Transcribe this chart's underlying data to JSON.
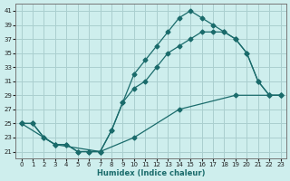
{
  "xlabel": "Humidex (Indice chaleur)",
  "xlim": [
    -0.5,
    23.5
  ],
  "ylim": [
    20,
    42
  ],
  "yticks": [
    21,
    23,
    25,
    27,
    29,
    31,
    33,
    35,
    37,
    39,
    41
  ],
  "xticks": [
    0,
    1,
    2,
    3,
    4,
    5,
    6,
    7,
    8,
    9,
    10,
    11,
    12,
    13,
    14,
    15,
    16,
    17,
    18,
    19,
    20,
    21,
    22,
    23
  ],
  "bg_color": "#ceeeed",
  "grid_color": "#aacfcf",
  "line_color": "#1a6b6b",
  "curve_top_x": [
    0,
    1,
    2,
    3,
    4,
    5,
    6,
    7,
    8,
    9,
    10,
    11,
    12,
    13,
    14,
    15,
    16,
    17,
    18,
    19,
    20,
    21,
    22,
    23
  ],
  "curve_top_y": [
    25,
    25,
    23,
    22,
    22,
    21,
    21,
    21,
    24,
    28,
    32,
    34,
    36,
    38,
    40,
    41,
    40,
    39,
    38,
    37,
    35,
    31,
    29,
    29
  ],
  "curve_mid_x": [
    0,
    1,
    2,
    3,
    4,
    5,
    6,
    7,
    8,
    9,
    10,
    11,
    12,
    13,
    14,
    15,
    16,
    17,
    18,
    19,
    20,
    21,
    22,
    23
  ],
  "curve_mid_y": [
    25,
    25,
    23,
    22,
    22,
    21,
    21,
    21,
    24,
    28,
    30,
    31,
    33,
    35,
    36,
    37,
    38,
    38,
    38,
    37,
    35,
    31,
    29,
    29
  ],
  "curve_bot_x": [
    0,
    3,
    7,
    10,
    14,
    19,
    22,
    23
  ],
  "curve_bot_y": [
    25,
    22,
    21,
    23,
    27,
    29,
    29,
    29
  ]
}
